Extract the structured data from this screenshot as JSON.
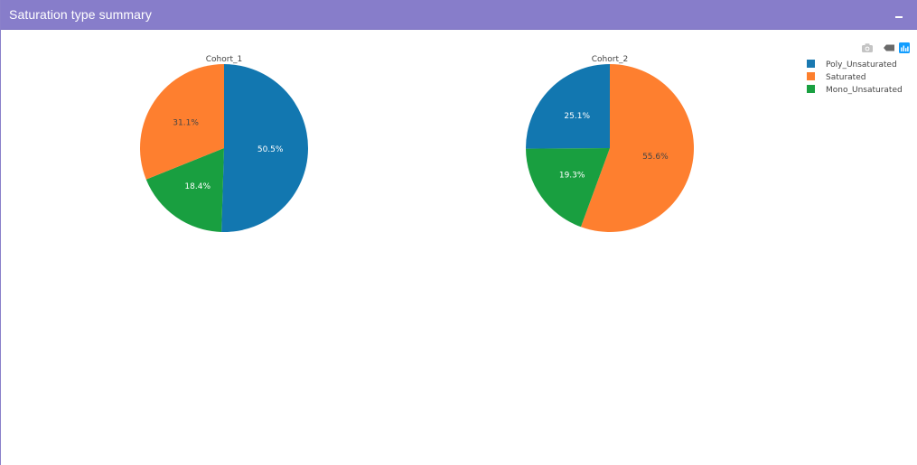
{
  "panel": {
    "title": "Saturation type summary",
    "collapse_label": "collapse"
  },
  "modebar": {
    "camera_icon": "camera-icon",
    "zoom_back_icon": "zoom-back-icon",
    "plotly_icon": "plotly-logo-icon"
  },
  "colors": {
    "header": "#877dca",
    "poly": "#1f77b4",
    "saturated": "#ff7f0e",
    "mono": "#2ca02c"
  },
  "legend": [
    {
      "name": "Poly_Unsaturated",
      "color": "#1a79b1"
    },
    {
      "name": "Saturated",
      "color": "#fd7f2d"
    },
    {
      "name": "Mono_Unsaturated",
      "color": "#1aa041"
    }
  ],
  "chart_data": [
    {
      "type": "pie",
      "title": "Cohort_1",
      "slices": [
        {
          "label": "Poly_Unsaturated",
          "value": 50.5,
          "text": "50.5%",
          "color": "#1277b0"
        },
        {
          "label": "Mono_Unsaturated",
          "value": 18.4,
          "text": "18.4%",
          "color": "#199f40"
        },
        {
          "label": "Saturated",
          "value": 31.1,
          "text": "31.1%",
          "color": "#fe7f2f"
        }
      ]
    },
    {
      "type": "pie",
      "title": "Cohort_2",
      "slices": [
        {
          "label": "Saturated",
          "value": 55.6,
          "text": "55.6%",
          "color": "#fe7f2f"
        },
        {
          "label": "Mono_Unsaturated",
          "value": 19.3,
          "text": "19.3%",
          "color": "#199f40"
        },
        {
          "label": "Poly_Unsaturated",
          "value": 25.1,
          "text": "25.1%",
          "color": "#1277b0"
        }
      ]
    }
  ]
}
